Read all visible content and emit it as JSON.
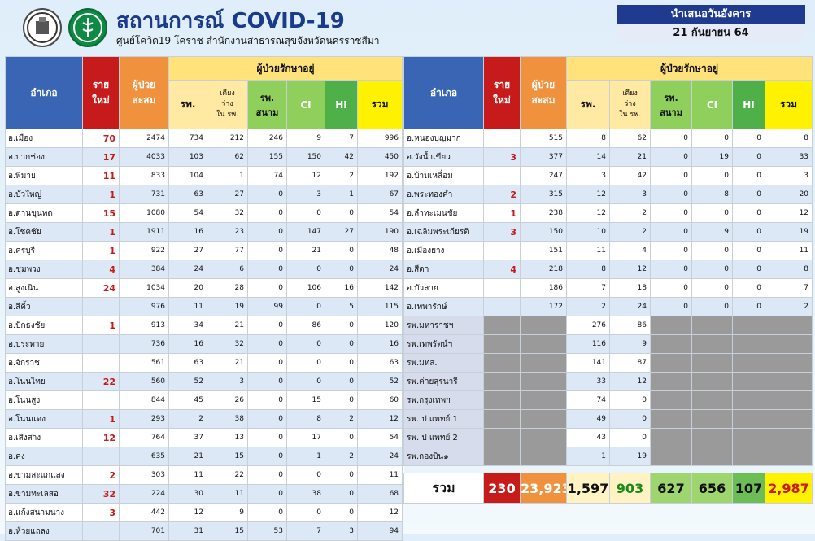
{
  "header": {
    "title": "สถานการณ์ COVID-19",
    "subtitle": "ศูนย์โควิด19 โคราช สำนักงานสาธารณสุขจังหวัดนครราชสีมา",
    "presented_label": "นำเสนอวันอังคาร",
    "date": "21 กันยายน 64"
  },
  "columns": {
    "district": "อำเภอ",
    "new_line1": "ราย",
    "new_line2": "ใหม่",
    "cum_line1": "ผู้ป่วย",
    "cum_line2": "สะสม",
    "group": "ผู้ป่วยรักษาอยู่",
    "sw": "รพ.",
    "bed_line1": "เตียง",
    "bed_line2": "ว่าง",
    "bed_line3": "ใน รพ.",
    "field_line1": "รพ.",
    "field_line2": "สนาม",
    "ci": "CI",
    "hi": "HI",
    "total": "รวม"
  },
  "left_rows": [
    {
      "name": "อ.เมือง",
      "new": "70",
      "cum": "2474",
      "sw": "734",
      "bed": "212",
      "field": "246",
      "ci": "9",
      "hi": "7",
      "total": "996"
    },
    {
      "name": "อ.ปากช่อง",
      "new": "17",
      "cum": "4033",
      "sw": "103",
      "bed": "62",
      "field": "155",
      "ci": "150",
      "hi": "42",
      "total": "450"
    },
    {
      "name": "อ.พิมาย",
      "new": "11",
      "cum": "833",
      "sw": "104",
      "bed": "1",
      "field": "74",
      "ci": "12",
      "hi": "2",
      "total": "192"
    },
    {
      "name": "อ.บัวใหญ่",
      "new": "1",
      "cum": "731",
      "sw": "63",
      "bed": "27",
      "field": "0",
      "ci": "3",
      "hi": "1",
      "total": "67"
    },
    {
      "name": "อ.ด่านขุนทด",
      "new": "15",
      "cum": "1080",
      "sw": "54",
      "bed": "32",
      "field": "0",
      "ci": "0",
      "hi": "0",
      "total": "54"
    },
    {
      "name": "อ.โชคชัย",
      "new": "1",
      "cum": "1911",
      "sw": "16",
      "bed": "23",
      "field": "0",
      "ci": "147",
      "hi": "27",
      "total": "190"
    },
    {
      "name": "อ.ครบุรี",
      "new": "1",
      "cum": "922",
      "sw": "27",
      "bed": "77",
      "field": "0",
      "ci": "21",
      "hi": "0",
      "total": "48"
    },
    {
      "name": "อ.ชุมพวง",
      "new": "4",
      "cum": "384",
      "sw": "24",
      "bed": "6",
      "field": "0",
      "ci": "0",
      "hi": "0",
      "total": "24"
    },
    {
      "name": "อ.สูงเนิน",
      "new": "24",
      "cum": "1034",
      "sw": "20",
      "bed": "28",
      "field": "0",
      "ci": "106",
      "hi": "16",
      "total": "142"
    },
    {
      "name": "อ.สีคิ้ว",
      "new": "",
      "cum": "976",
      "sw": "11",
      "bed": "19",
      "field": "99",
      "ci": "0",
      "hi": "5",
      "total": "115"
    },
    {
      "name": "อ.ปักธงชัย",
      "new": "1",
      "cum": "913",
      "sw": "34",
      "bed": "21",
      "field": "0",
      "ci": "86",
      "hi": "0",
      "total": "120"
    },
    {
      "name": "อ.ประทาย",
      "new": "",
      "cum": "736",
      "sw": "16",
      "bed": "32",
      "field": "0",
      "ci": "0",
      "hi": "0",
      "total": "16"
    },
    {
      "name": "อ.จักราช",
      "new": "",
      "cum": "561",
      "sw": "63",
      "bed": "21",
      "field": "0",
      "ci": "0",
      "hi": "0",
      "total": "63"
    },
    {
      "name": "อ.โนนไทย",
      "new": "22",
      "cum": "560",
      "sw": "52",
      "bed": "3",
      "field": "0",
      "ci": "0",
      "hi": "0",
      "total": "52"
    },
    {
      "name": "อ.โนนสูง",
      "new": "",
      "cum": "844",
      "sw": "45",
      "bed": "26",
      "field": "0",
      "ci": "15",
      "hi": "0",
      "total": "60"
    },
    {
      "name": "อ.โนนแดง",
      "new": "1",
      "cum": "293",
      "sw": "2",
      "bed": "38",
      "field": "0",
      "ci": "8",
      "hi": "2",
      "total": "12"
    },
    {
      "name": "อ.เสิงสาง",
      "new": "12",
      "cum": "764",
      "sw": "37",
      "bed": "13",
      "field": "0",
      "ci": "17",
      "hi": "0",
      "total": "54"
    },
    {
      "name": "อ.คง",
      "new": "",
      "cum": "635",
      "sw": "21",
      "bed": "15",
      "field": "0",
      "ci": "1",
      "hi": "2",
      "total": "24"
    },
    {
      "name": "อ.ขามสะแกแสง",
      "new": "2",
      "cum": "303",
      "sw": "11",
      "bed": "22",
      "field": "0",
      "ci": "0",
      "hi": "0",
      "total": "11"
    },
    {
      "name": "อ.ขามทะเลสอ",
      "new": "32",
      "cum": "224",
      "sw": "30",
      "bed": "11",
      "field": "0",
      "ci": "38",
      "hi": "0",
      "total": "68"
    },
    {
      "name": "อ.แก้งสนามนาง",
      "new": "3",
      "cum": "442",
      "sw": "12",
      "bed": "9",
      "field": "0",
      "ci": "0",
      "hi": "0",
      "total": "12"
    },
    {
      "name": "อ.ห้วยแถลง",
      "new": "",
      "cum": "701",
      "sw": "31",
      "bed": "15",
      "field": "53",
      "ci": "7",
      "hi": "3",
      "total": "94"
    }
  ],
  "right_rows": [
    {
      "name": "อ.หนองบุญมาก",
      "new": "",
      "cum": "515",
      "sw": "8",
      "bed": "62",
      "field": "0",
      "ci": "0",
      "hi": "0",
      "total": "8"
    },
    {
      "name": "อ.วังน้ำเขียว",
      "new": "3",
      "cum": "377",
      "sw": "14",
      "bed": "21",
      "field": "0",
      "ci": "19",
      "hi": "0",
      "total": "33"
    },
    {
      "name": "อ.บ้านเหลื่อม",
      "new": "",
      "cum": "247",
      "sw": "3",
      "bed": "42",
      "field": "0",
      "ci": "0",
      "hi": "0",
      "total": "3"
    },
    {
      "name": "อ.พระทองคำ",
      "new": "2",
      "cum": "315",
      "sw": "12",
      "bed": "3",
      "field": "0",
      "ci": "8",
      "hi": "0",
      "total": "20"
    },
    {
      "name": "อ.ลำทะเมนชัย",
      "new": "1",
      "cum": "238",
      "sw": "12",
      "bed": "2",
      "field": "0",
      "ci": "0",
      "hi": "0",
      "total": "12"
    },
    {
      "name": "อ.เฉลิมพระเกียรติ",
      "new": "3",
      "cum": "150",
      "sw": "10",
      "bed": "2",
      "field": "0",
      "ci": "9",
      "hi": "0",
      "total": "19"
    },
    {
      "name": "อ.เมืองยาง",
      "new": "",
      "cum": "151",
      "sw": "11",
      "bed": "4",
      "field": "0",
      "ci": "0",
      "hi": "0",
      "total": "11"
    },
    {
      "name": "อ.สีดา",
      "new": "4",
      "cum": "218",
      "sw": "8",
      "bed": "12",
      "field": "0",
      "ci": "0",
      "hi": "0",
      "total": "8"
    },
    {
      "name": "อ.บัวลาย",
      "new": "",
      "cum": "186",
      "sw": "7",
      "bed": "18",
      "field": "0",
      "ci": "0",
      "hi": "0",
      "total": "7"
    },
    {
      "name": "อ.เทพารักษ์",
      "new": "",
      "cum": "172",
      "sw": "2",
      "bed": "24",
      "field": "0",
      "ci": "0",
      "hi": "0",
      "total": "2"
    }
  ],
  "hospital_rows": [
    {
      "name": "รพ.มหาราชฯ",
      "sw": "276",
      "bed": "86"
    },
    {
      "name": "รพ.เทพรัตน์ฯ",
      "sw": "116",
      "bed": "9"
    },
    {
      "name": "รพ.มทส.",
      "sw": "141",
      "bed": "87"
    },
    {
      "name": "รพ.ค่ายสุรนารี",
      "sw": "33",
      "bed": "12"
    },
    {
      "name": "รพ.กรุงเทพฯ",
      "sw": "74",
      "bed": "0"
    },
    {
      "name": "รพ. ป แพทย์ 1",
      "sw": "49",
      "bed": "0"
    },
    {
      "name": "รพ. ป แพทย์ 2",
      "sw": "43",
      "bed": "0"
    },
    {
      "name": "รพ.กองบิน๑",
      "sw": "1",
      "bed": "19"
    }
  ],
  "totals": {
    "label": "รวม",
    "new": "230",
    "cum": "23,923",
    "sw": "1,597",
    "bed": "903",
    "field": "627",
    "ci": "656",
    "hi": "107",
    "total": "2,987"
  }
}
